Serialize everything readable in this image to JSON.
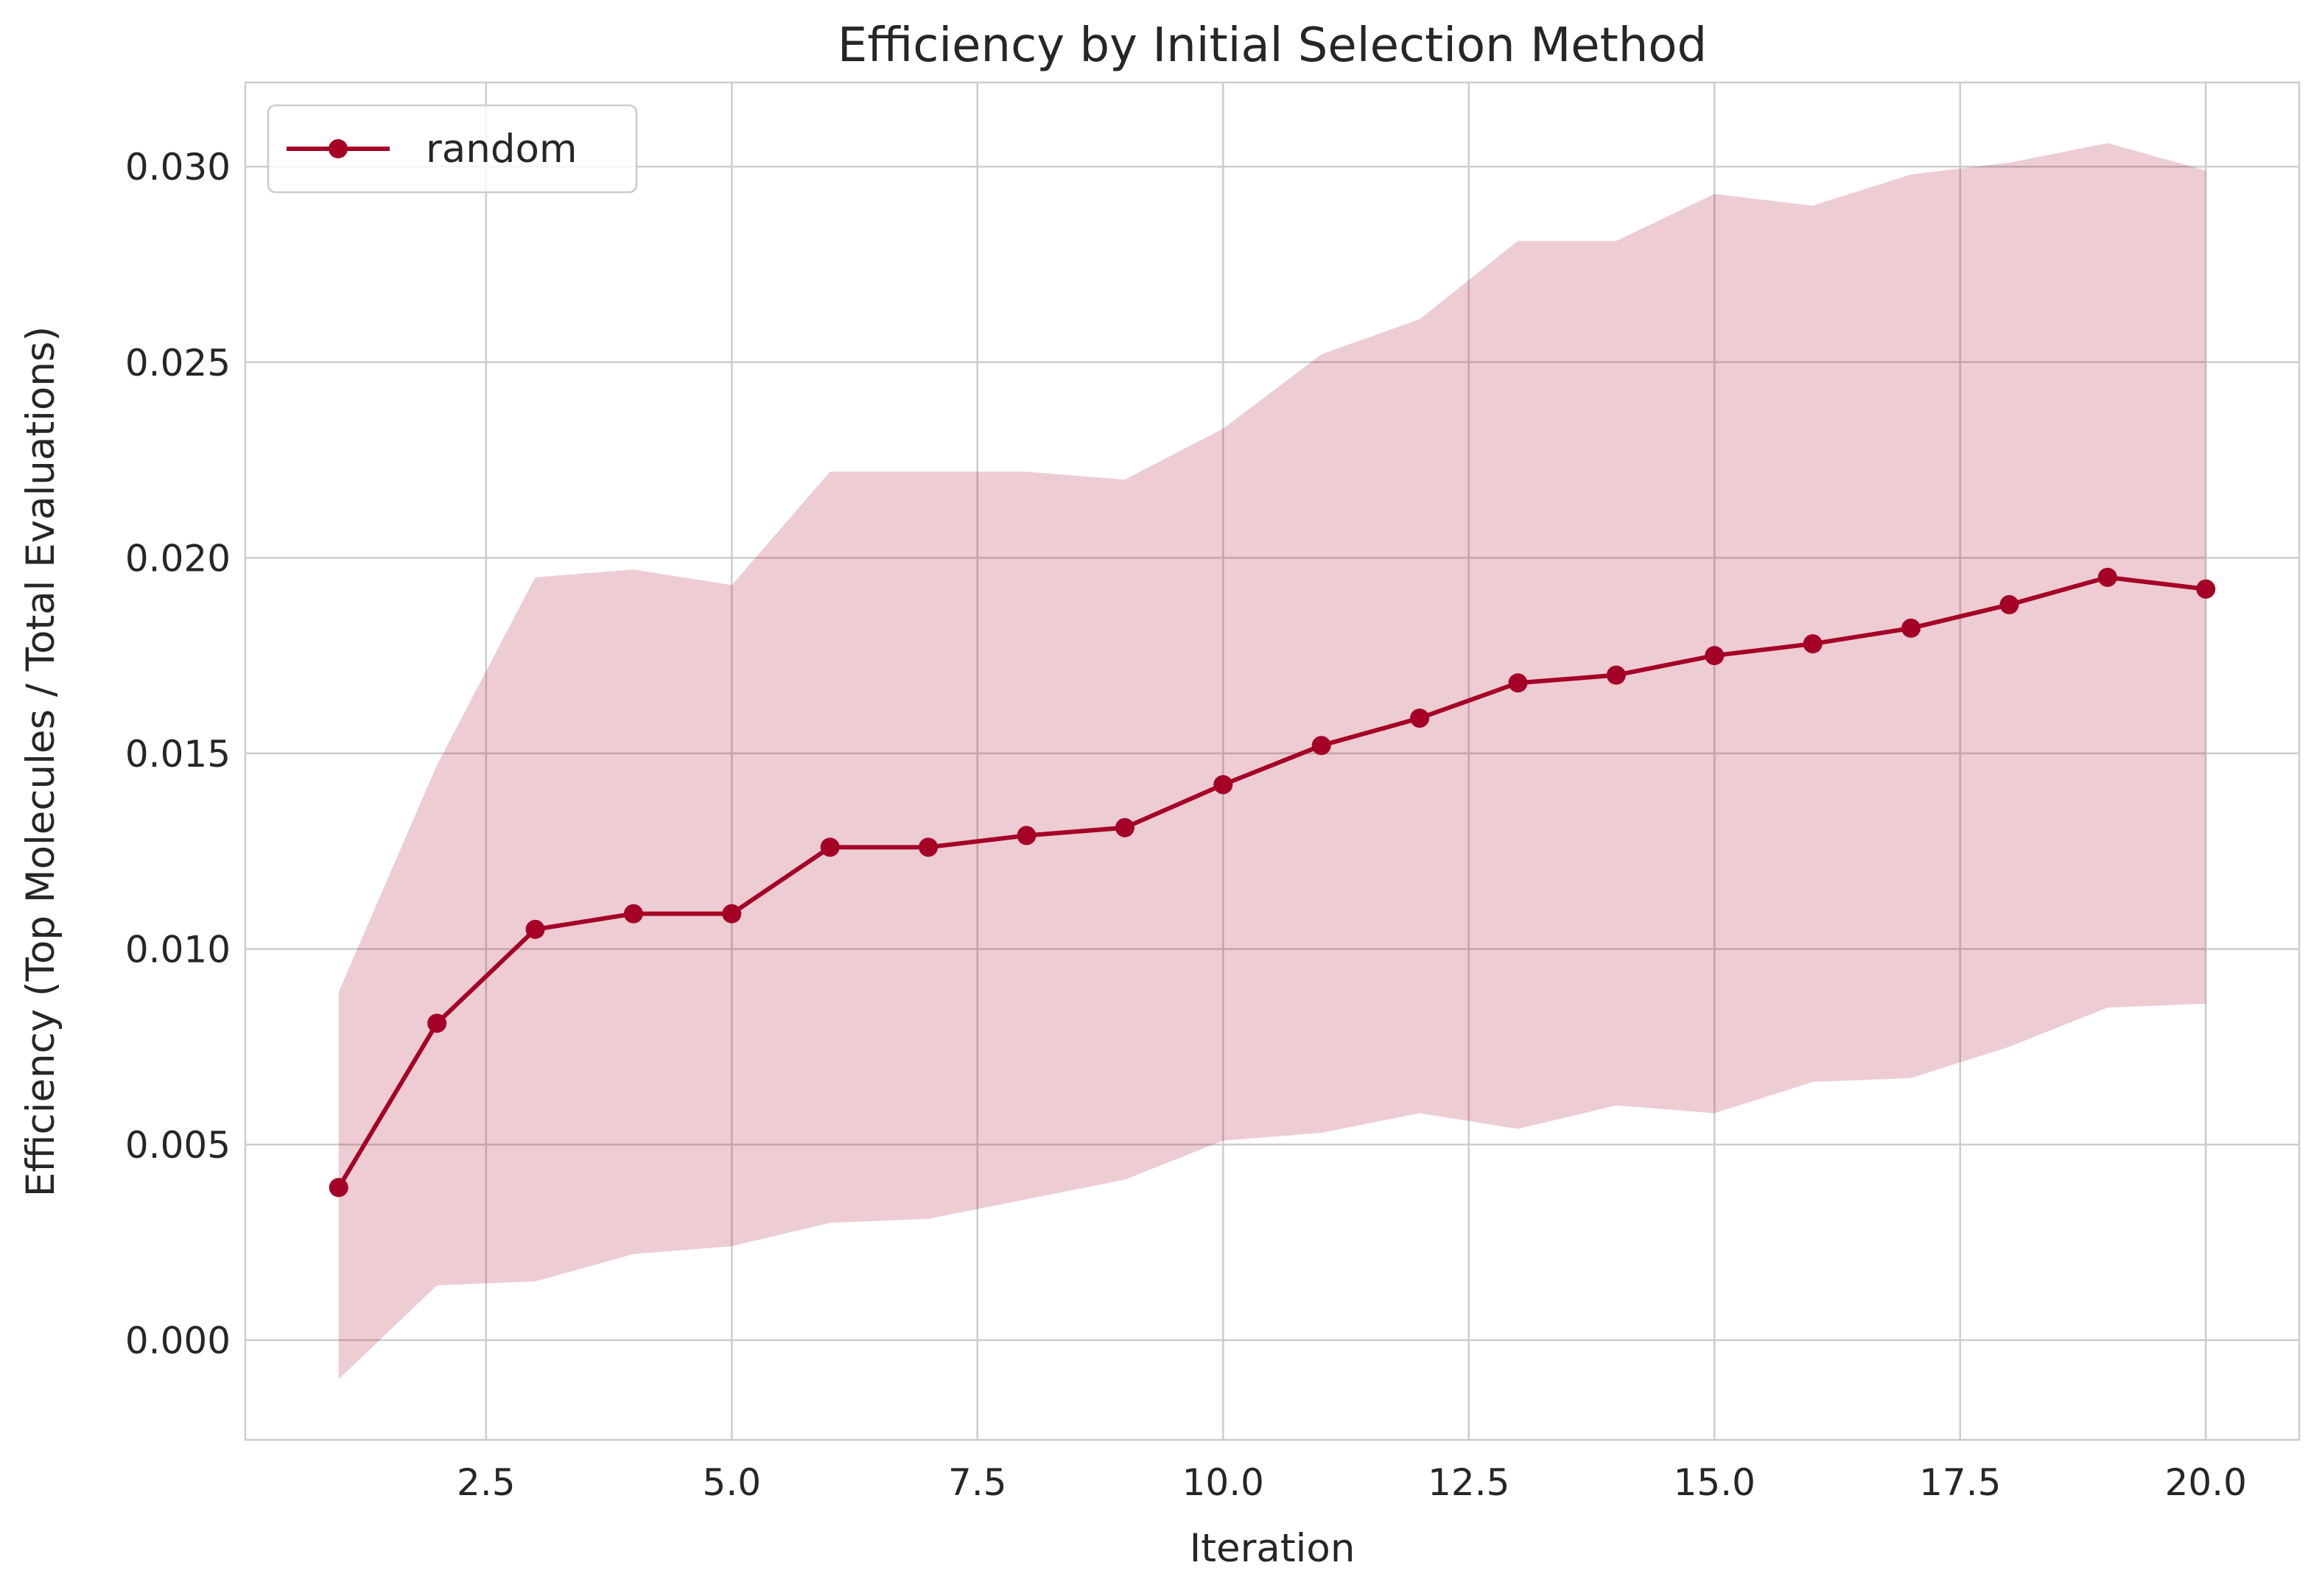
{
  "chart_data": {
    "type": "line",
    "title": "Efficiency by Initial Selection Method",
    "xlabel": "Iteration",
    "ylabel": "Efficiency (Top Molecules / Total Evaluations)",
    "xlim": [
      0.05,
      20.95
    ],
    "ylim": [
      -0.00255,
      0.03215
    ],
    "xticks": [
      2.5,
      5.0,
      7.5,
      10.0,
      12.5,
      15.0,
      17.5,
      20.0
    ],
    "xtick_labels": [
      "2.5",
      "5.0",
      "7.5",
      "10.0",
      "12.5",
      "15.0",
      "17.5",
      "20.0"
    ],
    "yticks": [
      0.0,
      0.005,
      0.01,
      0.015,
      0.02,
      0.025,
      0.03
    ],
    "ytick_labels": [
      "0.000",
      "0.005",
      "0.010",
      "0.015",
      "0.020",
      "0.025",
      "0.030"
    ],
    "grid": true,
    "legend_position": "top-left",
    "series": [
      {
        "name": "random",
        "color": "#a50026",
        "band_color": "#a50026",
        "band_opacity": 0.2,
        "x": [
          1,
          2,
          3,
          4,
          5,
          6,
          7,
          8,
          9,
          10,
          11,
          12,
          13,
          14,
          15,
          16,
          17,
          18,
          19,
          20
        ],
        "y": [
          0.0039,
          0.0081,
          0.0105,
          0.0109,
          0.0109,
          0.0126,
          0.0126,
          0.0129,
          0.0131,
          0.0142,
          0.0152,
          0.0159,
          0.0168,
          0.017,
          0.0175,
          0.0178,
          0.0182,
          0.0188,
          0.0195,
          0.0192
        ],
        "upper": [
          0.0089,
          0.0147,
          0.0195,
          0.0197,
          0.0193,
          0.0222,
          0.0222,
          0.0222,
          0.022,
          0.0233,
          0.0252,
          0.0261,
          0.0281,
          0.0281,
          0.0293,
          0.029,
          0.0298,
          0.0301,
          0.0306,
          0.0299
        ],
        "lower": [
          -0.001,
          0.0014,
          0.0015,
          0.0022,
          0.0024,
          0.003,
          0.0031,
          0.0036,
          0.0041,
          0.0051,
          0.0053,
          0.0058,
          0.0054,
          0.006,
          0.0058,
          0.0066,
          0.0067,
          0.0075,
          0.0085,
          0.0086
        ]
      }
    ]
  }
}
